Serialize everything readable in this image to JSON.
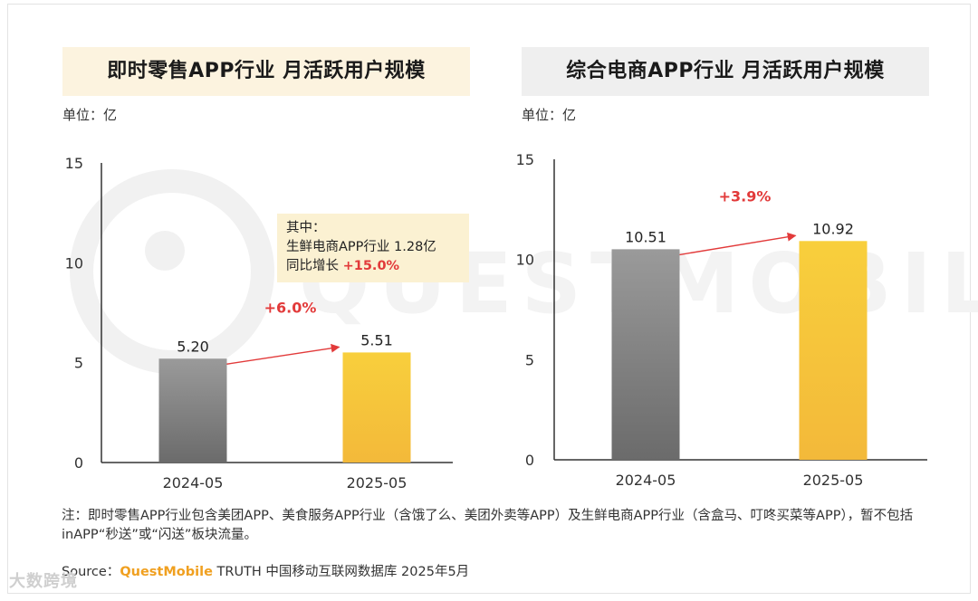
{
  "chart_data": [
    {
      "type": "bar",
      "title": "即时零售APP行业 月活跃用户规模",
      "unit": "单位：亿",
      "categories": [
        "2024-05",
        "2025-05"
      ],
      "values": [
        5.2,
        5.51
      ],
      "value_labels": [
        "5.20",
        "5.51"
      ],
      "ylim": [
        0,
        15
      ],
      "yticks": [
        "0",
        "5",
        "10",
        "15"
      ],
      "growth_label": "+6.0%",
      "bar_colors": [
        "#7d7d7d",
        "#f6c634"
      ],
      "callout": {
        "line1": "其中：",
        "line2": "生鲜电商APP行业 1.28亿",
        "line3_prefix": "同比增长 ",
        "line3_value": "+15.0%"
      }
    },
    {
      "type": "bar",
      "title": "综合电商APP行业 月活跃用户规模",
      "unit": "单位：亿",
      "categories": [
        "2024-05",
        "2025-05"
      ],
      "values": [
        10.51,
        10.92
      ],
      "value_labels": [
        "10.51",
        "10.92"
      ],
      "ylim": [
        0,
        15
      ],
      "yticks": [
        "0",
        "5",
        "10",
        "15"
      ],
      "growth_label": "+3.9%",
      "bar_colors": [
        "#7d7d7d",
        "#f6c634"
      ]
    }
  ],
  "note": "注：即时零售APP行业包含美团APP、美食服务APP行业（含饿了么、美团外卖等APP）及生鲜电商APP行业（含盒马、叮咚买菜等APP），暂不包括inAPP“秒送”或“闪送”板块流量。",
  "source": {
    "prefix": "Source：",
    "brand": "QuestMobile",
    "suffix": " TRUTH 中国移动互联网数据库 2025年5月"
  },
  "watermark_text": "QUESTMOBILE",
  "corner_brand": "大数跨境",
  "colors": {
    "growth_red": "#e23a3a",
    "left_title_bg": "#fcf3df",
    "right_title_bg": "#efefef"
  }
}
